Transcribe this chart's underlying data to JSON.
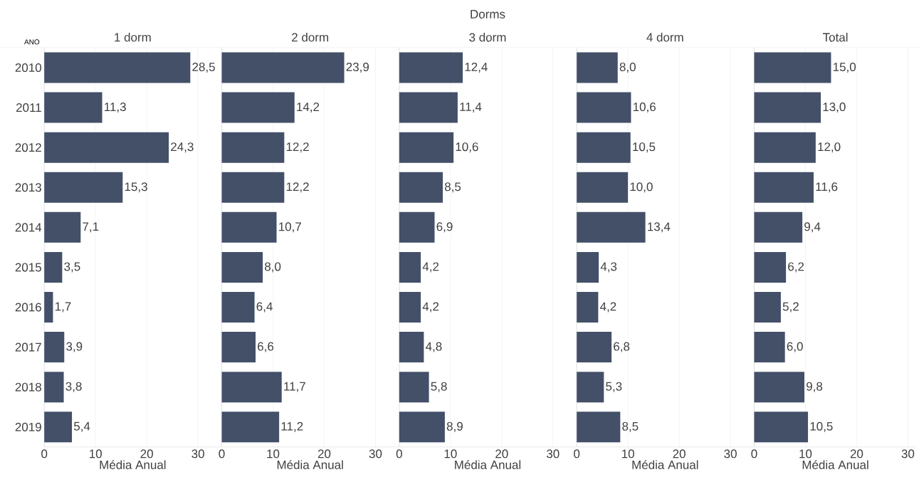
{
  "chart_data": [
    {
      "type": "bar",
      "orientation": "horizontal",
      "subtitle": "1 dorm",
      "ylabel": "ANO",
      "xlabel": "Média Anual",
      "categories": [
        "2010",
        "2011",
        "2012",
        "2013",
        "2014",
        "2015",
        "2016",
        "2017",
        "2018",
        "2019"
      ],
      "values": [
        28.5,
        11.3,
        24.3,
        15.3,
        7.1,
        3.5,
        1.7,
        3.9,
        3.8,
        5.4
      ],
      "value_labels": [
        "28,5",
        "11,3",
        "24,3",
        "15,3",
        "7,1",
        "3,5",
        "1,7",
        "3,9",
        "3,8",
        "5,4"
      ],
      "color": "#435068",
      "xlim": [
        0,
        34.5
      ],
      "xticks": [
        0,
        10,
        20,
        30
      ],
      "grid": "x"
    },
    {
      "type": "bar",
      "orientation": "horizontal",
      "subtitle": "2 dorm",
      "xlabel": "Média Anual",
      "categories": [
        "2010",
        "2011",
        "2012",
        "2013",
        "2014",
        "2015",
        "2016",
        "2017",
        "2018",
        "2019"
      ],
      "values": [
        23.9,
        14.2,
        12.2,
        12.2,
        10.7,
        8.0,
        6.4,
        6.6,
        11.7,
        11.2
      ],
      "value_labels": [
        "23,9",
        "14,2",
        "12,2",
        "12,2",
        "10,7",
        "8,0",
        "6,4",
        "6,6",
        "11,7",
        "11,2"
      ],
      "color": "#435068",
      "xlim": [
        0,
        34.5
      ],
      "xticks": [
        0,
        10,
        20,
        30
      ],
      "grid": "x",
      "tick_labels": "x"
    },
    {
      "type": "bar",
      "orientation": "horizontal",
      "title": "Dorms",
      "subtitle": "3 dorm",
      "xlabel": "Média Anual",
      "categories": [
        "2010",
        "2011",
        "2012",
        "2013",
        "2014",
        "2015",
        "2016",
        "2017",
        "2018",
        "2019"
      ],
      "values": [
        12.4,
        11.4,
        10.6,
        8.5,
        6.9,
        4.2,
        4.2,
        4.8,
        5.8,
        8.9
      ],
      "value_labels": [
        "12,4",
        "11,4",
        "10,6",
        "8,5",
        "6,9",
        "4,2",
        "4,2",
        "4,8",
        "5,8",
        "8,9"
      ],
      "color": "#435068",
      "xlim": [
        0,
        34.5
      ],
      "xticks": [
        0,
        10,
        20,
        30
      ],
      "grid": "x",
      "tick_labels": "x"
    },
    {
      "type": "bar",
      "orientation": "horizontal",
      "subtitle": "4 dorm",
      "xlabel": "Média Anual",
      "categories": [
        "2010",
        "2011",
        "2012",
        "2013",
        "2014",
        "2015",
        "2016",
        "2017",
        "2018",
        "2019"
      ],
      "values": [
        8.0,
        10.6,
        10.5,
        10.0,
        13.4,
        4.3,
        4.2,
        6.8,
        5.3,
        8.5
      ],
      "value_labels": [
        "8,0",
        "10,6",
        "10,5",
        "10,0",
        "13,4",
        "4,3",
        "4,2",
        "6,8",
        "5,3",
        "8,5"
      ],
      "color": "#435068",
      "xlim": [
        0,
        34.5
      ],
      "xticks": [
        0,
        10,
        20,
        30
      ],
      "grid": "x",
      "tick_labels": "x"
    },
    {
      "type": "bar",
      "orientation": "horizontal",
      "subtitle": "Total",
      "xlabel": "Média Anual",
      "categories": [
        "2010",
        "2011",
        "2012",
        "2013",
        "2014",
        "2015",
        "2016",
        "2017",
        "2018",
        "2019"
      ],
      "values": [
        15.0,
        13.0,
        12.0,
        11.6,
        9.4,
        6.2,
        5.2,
        6.0,
        9.8,
        10.5
      ],
      "value_labels": [
        "15,0",
        "13,0",
        "12,0",
        "11,6",
        "9,4",
        "6,2",
        "5,2",
        "6,0",
        "9,8",
        "10,5"
      ],
      "color": "#435068",
      "xlim": [
        0,
        31.7
      ],
      "xticks": [
        0,
        10,
        20,
        30
      ],
      "grid": "x",
      "tick_labels": "x"
    }
  ]
}
